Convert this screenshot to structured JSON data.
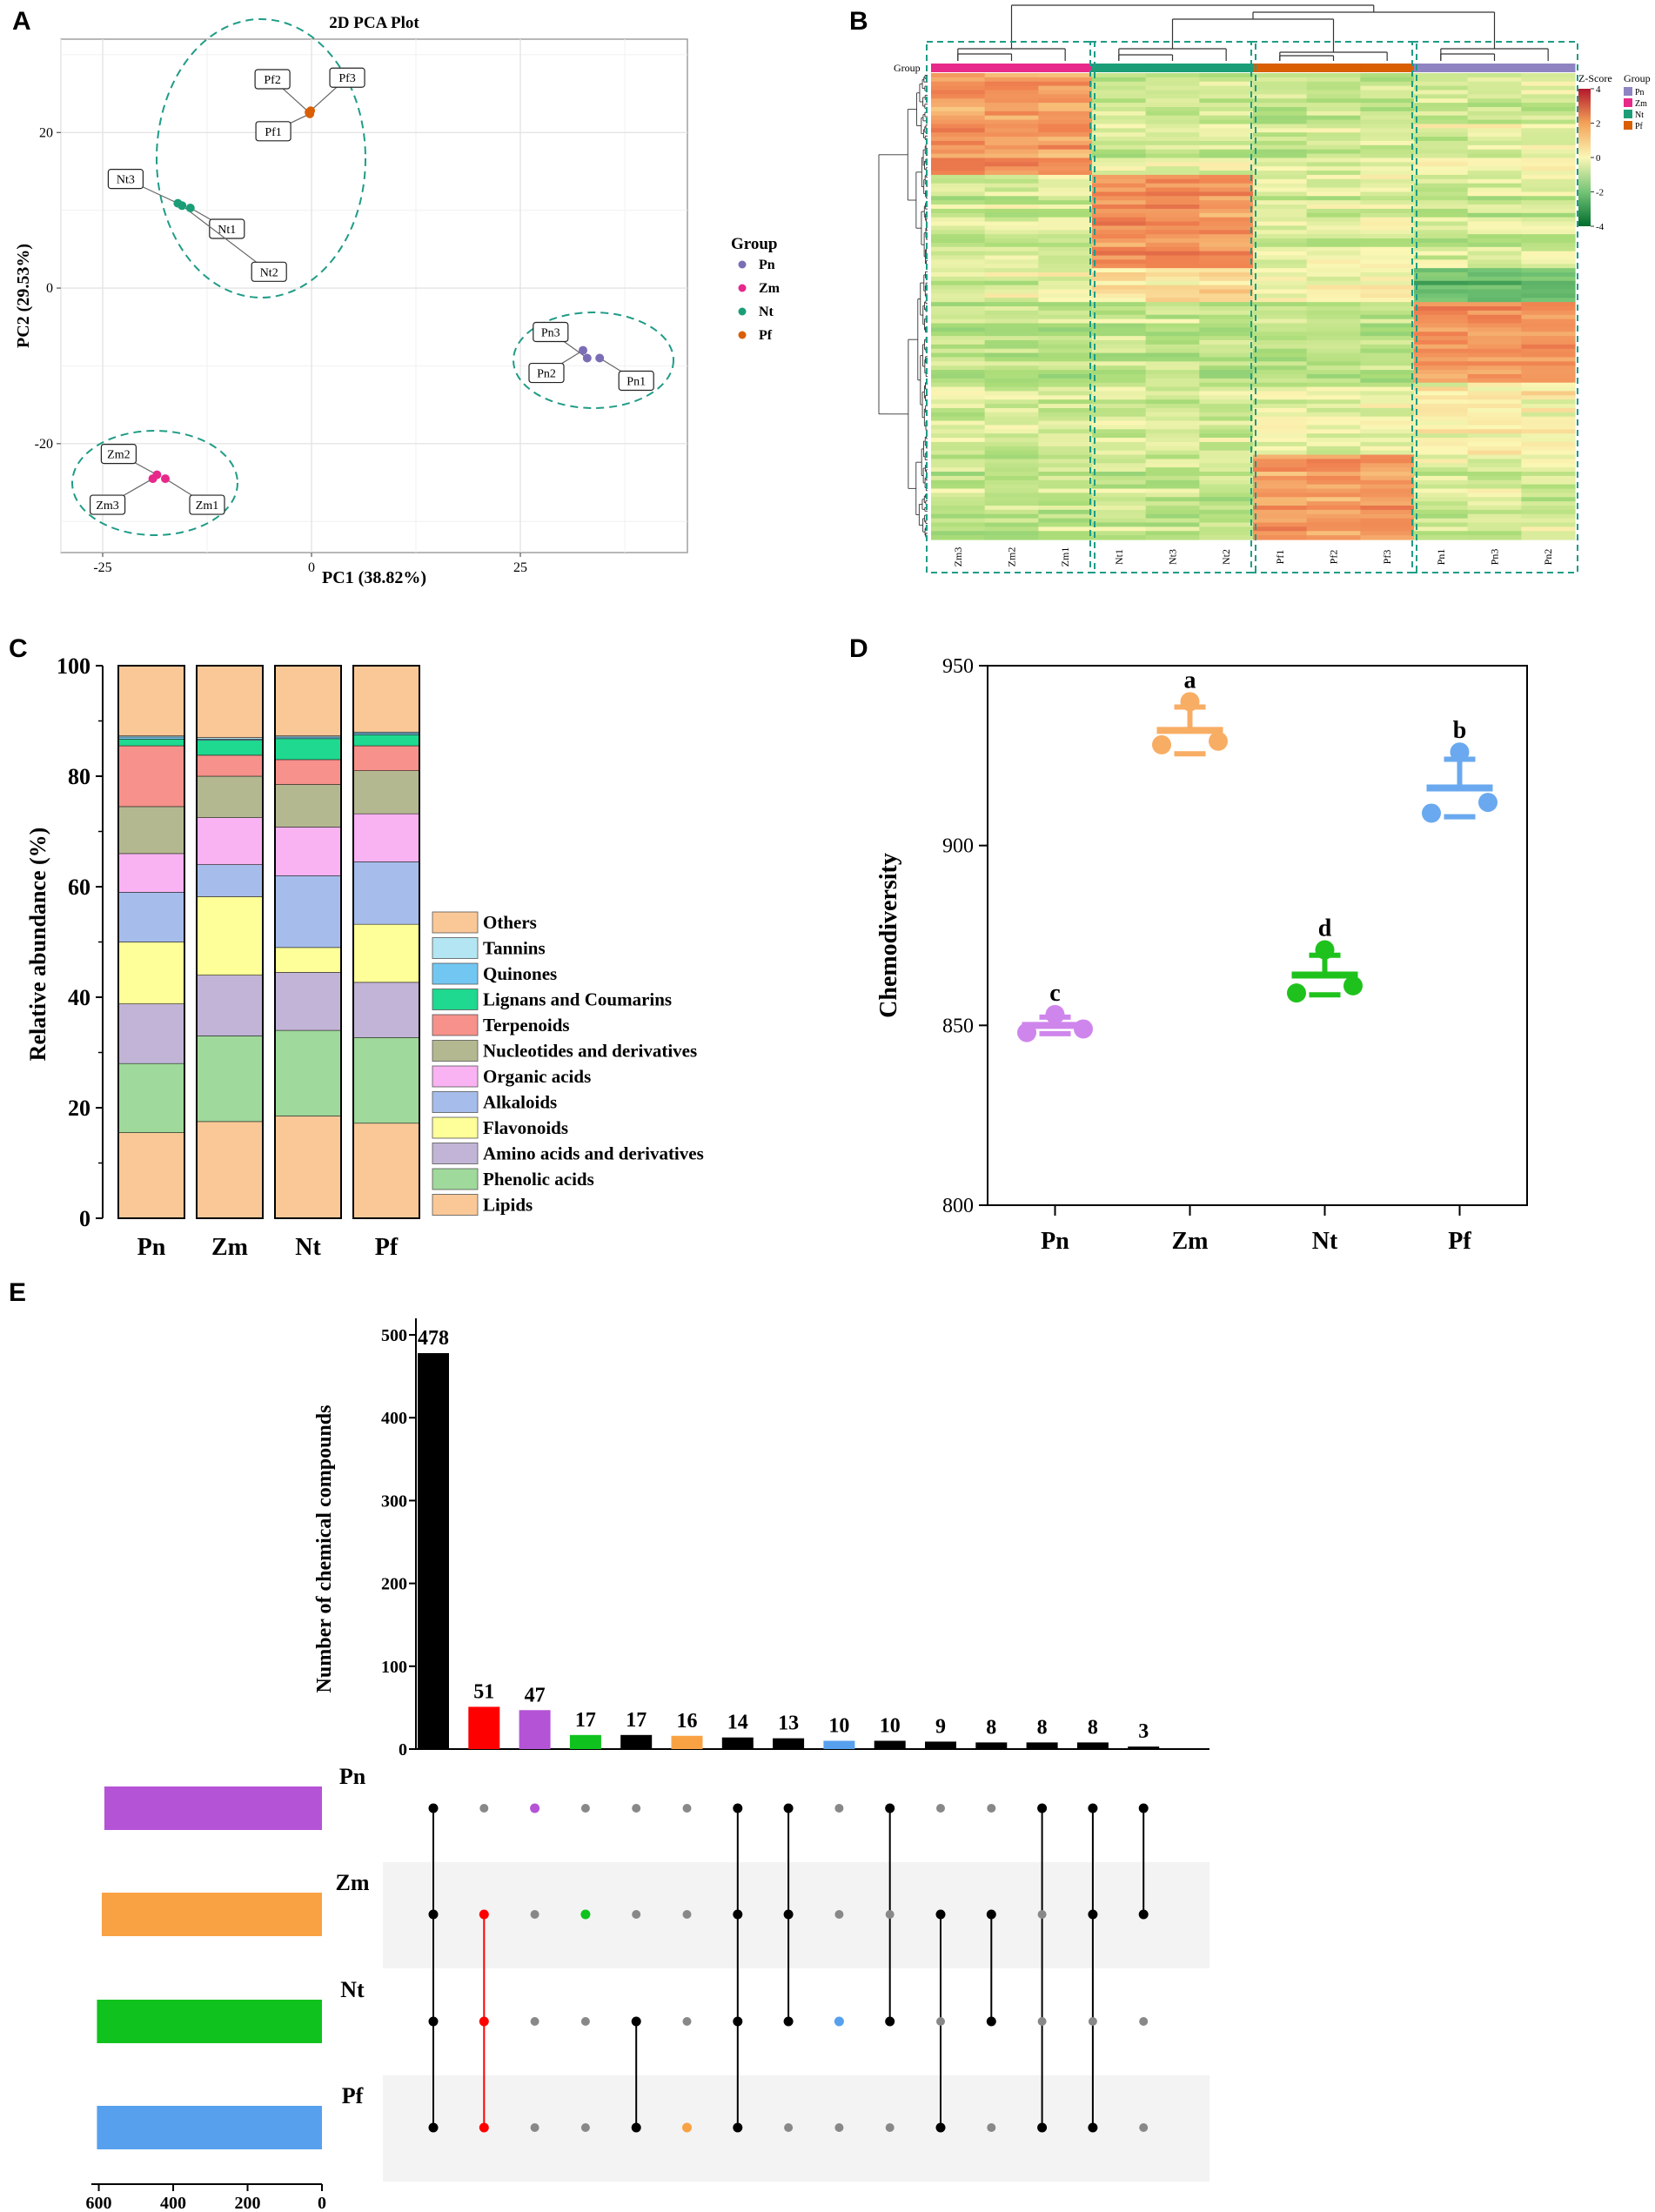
{
  "panel_letters": [
    "A",
    "B",
    "C",
    "D",
    "E"
  ],
  "chart_data": [
    {
      "id": "A",
      "type": "scatter",
      "title": "2D PCA Plot",
      "xlabel": "PC1 (38.82%)",
      "ylabel": "PC2 (29.53%)",
      "xlim": [
        -30,
        45
      ],
      "ylim": [
        -34,
        32
      ],
      "xticks": [
        -25,
        0,
        25
      ],
      "yticks": [
        -20,
        0,
        20
      ],
      "legend_title": "Group",
      "groups": [
        {
          "name": "Pn",
          "color": "#7b6db5"
        },
        {
          "name": "Zm",
          "color": "#e7298a"
        },
        {
          "name": "Nt",
          "color": "#1b9e77"
        },
        {
          "name": "Pf",
          "color": "#d95f02"
        }
      ],
      "points": [
        {
          "label": "Pn1",
          "group": "Pn",
          "x": 34.5,
          "y": -9.0
        },
        {
          "label": "Pn2",
          "group": "Pn",
          "x": 32.5,
          "y": -8.0
        },
        {
          "label": "Pn3",
          "group": "Pn",
          "x": 33.0,
          "y": -9.0
        },
        {
          "label": "Zm1",
          "group": "Zm",
          "x": -17.5,
          "y": -24.5
        },
        {
          "label": "Zm2",
          "group": "Zm",
          "x": -18.5,
          "y": -24.0
        },
        {
          "label": "Zm3",
          "group": "Zm",
          "x": -19.0,
          "y": -24.5
        },
        {
          "label": "Nt1",
          "group": "Nt",
          "x": -14.5,
          "y": 10.3
        },
        {
          "label": "Nt2",
          "group": "Nt",
          "x": -15.5,
          "y": 10.6
        },
        {
          "label": "Nt3",
          "group": "Nt",
          "x": -16.0,
          "y": 10.9
        },
        {
          "label": "Pf1",
          "group": "Pf",
          "x": -0.2,
          "y": 22.4
        },
        {
          "label": "Pf2",
          "group": "Pf",
          "x": -0.3,
          "y": 22.6
        },
        {
          "label": "Pf3",
          "group": "Pf",
          "x": -0.1,
          "y": 22.8
        }
      ]
    },
    {
      "id": "B",
      "type": "heatmap",
      "group_label": "Group",
      "colorbar_title": "Z-Score",
      "colorbar_ticks": [
        4,
        2,
        0,
        -2,
        -4
      ],
      "legend_title": "Group",
      "legend": [
        {
          "name": "Pn",
          "color": "#8f84c2"
        },
        {
          "name": "Zm",
          "color": "#e7298a"
        },
        {
          "name": "Nt",
          "color": "#1b9e77"
        },
        {
          "name": "Pf",
          "color": "#d95f02"
        }
      ],
      "columns": [
        "Zm3",
        "Zm2",
        "Zm1",
        "Nt1",
        "Nt3",
        "Nt2",
        "Pf1",
        "Pf2",
        "Pf3",
        "Pn1",
        "Pn3",
        "Pn2"
      ],
      "column_groups": [
        "Zm",
        "Zm",
        "Zm",
        "Nt",
        "Nt",
        "Nt",
        "Pf",
        "Pf",
        "Pf",
        "Pn",
        "Pn",
        "Pn"
      ]
    },
    {
      "id": "C",
      "type": "bar",
      "stacked": true,
      "ylabel": "Relative abundance (%)",
      "ylim": [
        0,
        100
      ],
      "yticks": [
        0,
        20,
        40,
        60,
        80,
        100
      ],
      "categories": [
        "Pn",
        "Zm",
        "Nt",
        "Pf"
      ],
      "series": [
        {
          "name": "Lipids",
          "color": "#fac897",
          "values": [
            15.5,
            17.5,
            18.5,
            17.2
          ]
        },
        {
          "name": "Phenolic acids",
          "color": "#9fd99b",
          "values": [
            12.5,
            15.5,
            15.5,
            15.5
          ]
        },
        {
          "name": "Amino acids and derivatives",
          "color": "#c1b4d6",
          "values": [
            10.8,
            11.0,
            10.5,
            10.0
          ]
        },
        {
          "name": "Flavonoids",
          "color": "#ffff99",
          "values": [
            11.2,
            14.2,
            4.5,
            10.5
          ]
        },
        {
          "name": "Alkaloids",
          "color": "#a6bdeb",
          "values": [
            9.0,
            5.8,
            13.0,
            11.3
          ]
        },
        {
          "name": "Organic acids",
          "color": "#f9b2f2",
          "values": [
            7.0,
            8.5,
            8.8,
            8.7
          ]
        },
        {
          "name": "Nucleotides and derivatives",
          "color": "#b4b890",
          "values": [
            8.5,
            7.5,
            7.7,
            7.8
          ]
        },
        {
          "name": "Terpenoids",
          "color": "#f7918b",
          "values": [
            11.0,
            3.8,
            4.5,
            4.5
          ]
        },
        {
          "name": "Lignans and Coumarins",
          "color": "#1ed98f",
          "values": [
            1.2,
            2.7,
            3.8,
            2.0
          ]
        },
        {
          "name": "Quinones",
          "color": "#72c7f2",
          "values": [
            0.4,
            0.2,
            0.3,
            0.3
          ]
        },
        {
          "name": "Tannins",
          "color": "#b3e6f2",
          "values": [
            0.2,
            0.3,
            0.2,
            0.2
          ]
        },
        {
          "name": "Others",
          "color": "#fac897",
          "values": [
            12.7,
            13.0,
            12.7,
            12.0
          ]
        }
      ],
      "legend_order": [
        "Others",
        "Tannins",
        "Quinones",
        "Lignans and Coumarins",
        "Terpenoids",
        "Nucleotides and derivatives",
        "Organic acids",
        "Alkaloids",
        "Flavonoids",
        "Amino acids and derivatives",
        "Phenolic acids",
        "Lipids"
      ]
    },
    {
      "id": "D",
      "type": "scatter",
      "ylabel": "Chemodiversity",
      "ylim": [
        800,
        950
      ],
      "yticks": [
        800,
        850,
        900,
        950
      ],
      "categories": [
        "Pn",
        "Zm",
        "Nt",
        "Pf"
      ],
      "groups": [
        {
          "name": "Pn",
          "color": "#cf86ec",
          "mean": 850,
          "sd": 2.3,
          "letter": "c",
          "points": [
            {
              "dx": -0.25,
              "v": 848
            },
            {
              "dx": 0.0,
              "v": 853
            },
            {
              "dx": 0.25,
              "v": 849
            }
          ]
        },
        {
          "name": "Zm",
          "color": "#f8ad64",
          "mean": 932,
          "sd": 6.5,
          "letter": "a",
          "points": [
            {
              "dx": -0.25,
              "v": 928
            },
            {
              "dx": 0.0,
              "v": 940
            },
            {
              "dx": 0.25,
              "v": 929
            }
          ]
        },
        {
          "name": "Nt",
          "color": "#1fc21c",
          "mean": 864,
          "sd": 5.5,
          "letter": "d",
          "points": [
            {
              "dx": -0.25,
              "v": 859
            },
            {
              "dx": 0.0,
              "v": 871
            },
            {
              "dx": 0.25,
              "v": 861
            }
          ]
        },
        {
          "name": "Pf",
          "color": "#6aa9ef",
          "mean": 916,
          "sd": 8.0,
          "letter": "b",
          "points": [
            {
              "dx": -0.25,
              "v": 909
            },
            {
              "dx": 0.0,
              "v": 926
            },
            {
              "dx": 0.25,
              "v": 912
            }
          ]
        }
      ]
    },
    {
      "id": "E",
      "type": "bar",
      "subtype": "upset",
      "ylabel": "Number of chemical compounds",
      "ylim": [
        0,
        520
      ],
      "yticks": [
        0,
        100,
        200,
        300,
        400,
        500
      ],
      "sets": [
        "Pn",
        "Zm",
        "Nt",
        "Pf"
      ],
      "set_colors": [
        "#b453d6",
        "#f9a244",
        "#10c21e",
        "#57a0ee"
      ],
      "set_sizes": [
        585,
        592,
        605,
        605
      ],
      "set_xticks": [
        600,
        400,
        200,
        0
      ],
      "set_xlim": [
        0,
        620
      ],
      "intersections": [
        {
          "value": 478,
          "color": "#000000",
          "sets": [
            "Pn",
            "Zm",
            "Nt",
            "Pf"
          ]
        },
        {
          "value": 51,
          "color": "#ff0000",
          "sets": [
            "Zm",
            "Nt",
            "Pf"
          ]
        },
        {
          "value": 47,
          "color": "#b453d6",
          "sets": [
            "Pn"
          ]
        },
        {
          "value": 17,
          "color": "#10c21e",
          "sets": [
            "Zm"
          ]
        },
        {
          "value": 17,
          "color": "#000000",
          "sets": [
            "Nt",
            "Pf"
          ]
        },
        {
          "value": 16,
          "color": "#f9a244",
          "sets": [
            "Pf"
          ]
        },
        {
          "value": 14,
          "color": "#000000",
          "sets": [
            "Pn",
            "Zm",
            "Nt",
            "Pf"
          ]
        },
        {
          "value": 13,
          "color": "#000000",
          "sets": [
            "Pn",
            "Zm",
            "Nt"
          ]
        },
        {
          "value": 10,
          "color": "#57a0ee",
          "sets": [
            "Nt"
          ]
        },
        {
          "value": 10,
          "color": "#000000",
          "sets": [
            "Pn",
            "Nt"
          ]
        },
        {
          "value": 9,
          "color": "#000000",
          "sets": [
            "Zm",
            "Pf"
          ]
        },
        {
          "value": 8,
          "color": "#000000",
          "sets": [
            "Zm",
            "Nt"
          ]
        },
        {
          "value": 8,
          "color": "#000000",
          "sets": [
            "Pn",
            "Pf"
          ]
        },
        {
          "value": 8,
          "color": "#000000",
          "sets": [
            "Pn",
            "Zm",
            "Pf"
          ]
        },
        {
          "value": 3,
          "color": "#000000",
          "sets": [
            "Pn",
            "Zm"
          ]
        }
      ]
    }
  ]
}
